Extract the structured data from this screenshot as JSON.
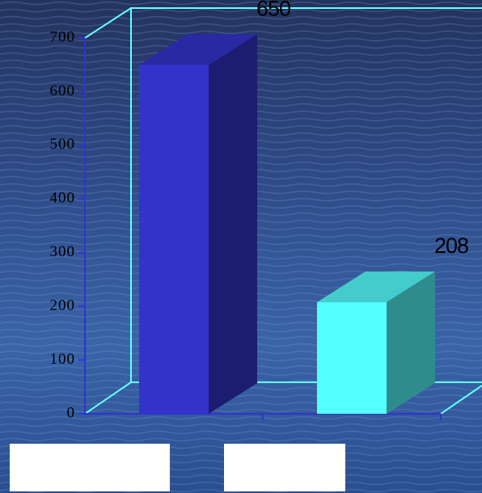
{
  "chart_data": {
    "type": "bar",
    "categories": [
      null,
      null
    ],
    "values": [
      650,
      208
    ],
    "colors": [
      "#3333cc",
      "#55ffff"
    ],
    "ylim": [
      0,
      700
    ],
    "yticks": [
      0,
      100,
      200,
      300,
      400,
      500,
      600,
      700
    ]
  }
}
